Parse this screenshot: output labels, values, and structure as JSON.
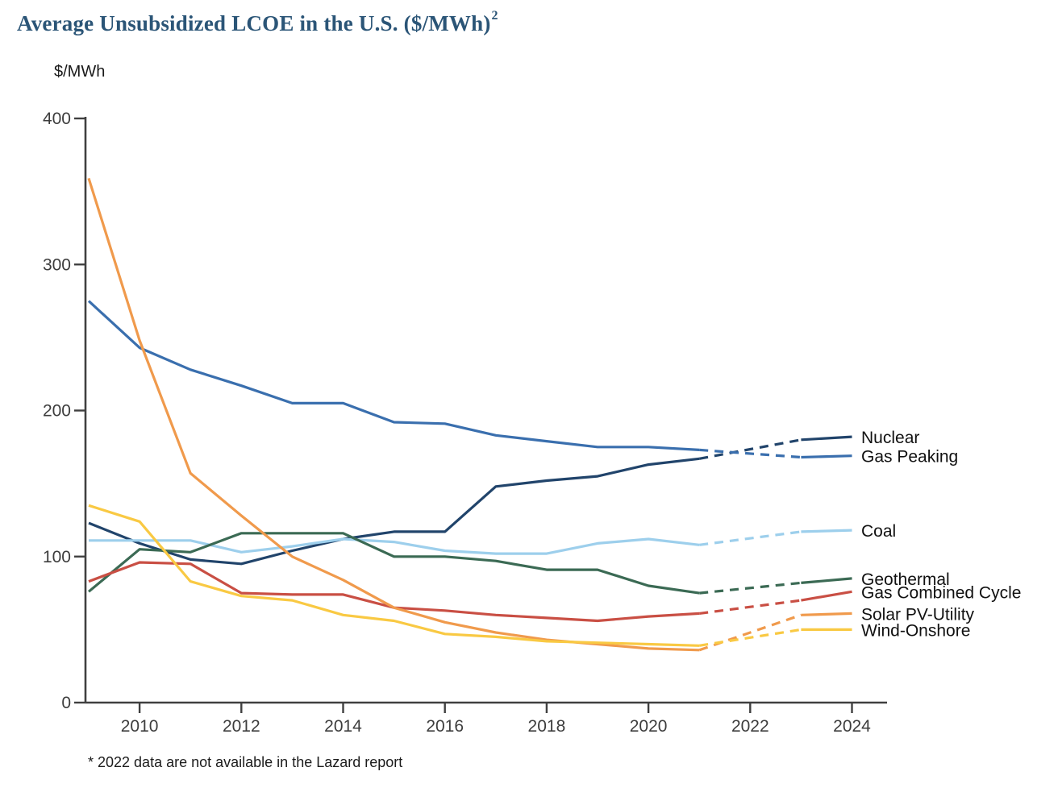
{
  "title": {
    "text": "Average Unsubsidized LCOE in the U.S. ($/MWh)",
    "superscript": "2"
  },
  "footnote": "* 2022 data are not available in the Lazard report",
  "colors": {
    "title": "#2b5577",
    "axis": "#404040",
    "legend_text": "#111111"
  },
  "chart_data": {
    "type": "line",
    "title": "Average Unsubsidized LCOE in the U.S. ($/MWh)",
    "xlabel": "",
    "ylabel": "$/MWh",
    "x": [
      2009,
      2010,
      2011,
      2012,
      2013,
      2014,
      2015,
      2016,
      2017,
      2018,
      2019,
      2020,
      2021,
      2023,
      2024
    ],
    "missing_year_note": "2022 data not available (shown as dashed gap between 2021 and 2023)",
    "dashed_segment": [
      2021,
      2023
    ],
    "x_ticks": [
      2010,
      2012,
      2014,
      2016,
      2018,
      2020,
      2022,
      2024
    ],
    "y_ticks": [
      0,
      100,
      200,
      300,
      400
    ],
    "xlim": [
      2009,
      2024
    ],
    "ylim": [
      0,
      400
    ],
    "grid": false,
    "legend_position": "right-of-line-ends",
    "series": [
      {
        "name": "Nuclear",
        "color": "#21446b",
        "values": [
          123,
          109,
          98,
          95,
          104,
          112,
          117,
          117,
          148,
          152,
          155,
          163,
          167,
          180,
          182
        ]
      },
      {
        "name": "Gas Peaking",
        "color": "#3a6fae",
        "values": [
          275,
          243,
          228,
          217,
          205,
          205,
          192,
          191,
          183,
          179,
          175,
          175,
          173,
          168,
          169
        ]
      },
      {
        "name": "Coal",
        "color": "#9dcfec",
        "values": [
          111,
          111,
          111,
          103,
          107,
          112,
          110,
          104,
          102,
          102,
          109,
          112,
          108,
          117,
          118
        ]
      },
      {
        "name": "Geothermal",
        "color": "#3b6a54",
        "values": [
          76,
          105,
          103,
          116,
          116,
          116,
          100,
          100,
          97,
          91,
          91,
          80,
          75,
          82,
          85
        ]
      },
      {
        "name": "Gas Combined Cycle",
        "color": "#c94f44",
        "values": [
          83,
          96,
          95,
          75,
          74,
          74,
          65,
          63,
          60,
          58,
          56,
          59,
          61,
          70,
          76
        ]
      },
      {
        "name": "Solar PV-Utility",
        "color": "#f09a4c",
        "values": [
          359,
          248,
          157,
          128,
          100,
          84,
          65,
          55,
          48,
          43,
          40,
          37,
          36,
          60,
          61
        ]
      },
      {
        "name": "Wind-Onshore",
        "color": "#f9c943",
        "values": [
          135,
          124,
          83,
          73,
          70,
          60,
          56,
          47,
          45,
          42,
          41,
          40,
          39,
          50,
          50
        ]
      }
    ]
  }
}
